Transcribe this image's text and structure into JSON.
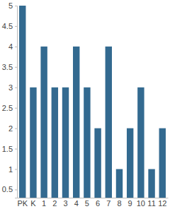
{
  "chart_data": {
    "type": "bar",
    "categories": [
      "PK",
      "K",
      "1",
      "2",
      "3",
      "4",
      "5",
      "6",
      "7",
      "8",
      "9",
      "10",
      "11",
      "12"
    ],
    "values": [
      5,
      3,
      4,
      3,
      3,
      4,
      3,
      2,
      4,
      1,
      2,
      3,
      1,
      2
    ],
    "color": "#336a90",
    "ylim": [
      0.3,
      5
    ],
    "yticks": [
      0.5,
      1,
      1.5,
      2,
      2.5,
      3,
      3.5,
      4,
      4.5,
      5
    ],
    "grid": false
  }
}
